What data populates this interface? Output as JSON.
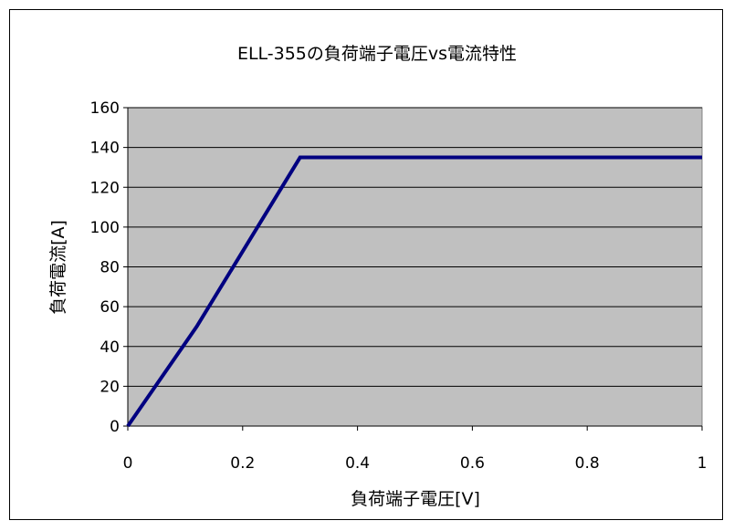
{
  "chart_data": {
    "type": "line",
    "title": "ELL-355の負荷端子電圧vs電流特性",
    "xlabel": "負荷端子電圧[V]",
    "ylabel": "負荷電流[A]",
    "xlim": [
      0,
      1
    ],
    "ylim": [
      0,
      160
    ],
    "xticks": [
      0,
      0.2,
      0.4,
      0.6,
      0.8,
      1
    ],
    "xtick_labels": [
      "0",
      "0.2",
      "0.4",
      "0.6",
      "0.8",
      "1"
    ],
    "yticks": [
      0,
      20,
      40,
      60,
      80,
      100,
      120,
      140,
      160
    ],
    "ytick_labels": [
      "0",
      "20",
      "40",
      "60",
      "80",
      "100",
      "120",
      "140",
      "160"
    ],
    "grid": {
      "horizontal": true,
      "vertical": false
    },
    "legend": "none",
    "plot_background": "#c0c0c0",
    "series": [
      {
        "color": "#000080",
        "points": [
          {
            "x": 0,
            "y": 0
          },
          {
            "x": 0.12,
            "y": 50
          },
          {
            "x": 0.3,
            "y": 135
          },
          {
            "x": 1,
            "y": 135
          }
        ]
      }
    ]
  }
}
